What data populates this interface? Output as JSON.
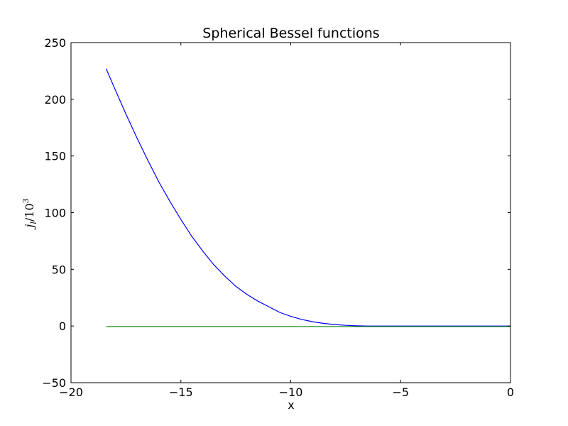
{
  "chart_data": {
    "type": "line",
    "title": "Spherical Bessel functions",
    "xlabel": "x",
    "ylabel": "j_l/10^3",
    "ylabel_parts": {
      "sym": "j",
      "sub": "l",
      "mid": "/10",
      "sup": "3"
    },
    "xlim": [
      -20,
      0
    ],
    "ylim": [
      -50,
      250
    ],
    "xticks": [
      -20,
      -15,
      -10,
      -5,
      0
    ],
    "xtick_labels": [
      "−20",
      "−15",
      "−10",
      "−5",
      "0"
    ],
    "yticks": [
      -50,
      0,
      50,
      100,
      150,
      200,
      250
    ],
    "ytick_labels": [
      "−50",
      "0",
      "50",
      "100",
      "150",
      "200",
      "250"
    ],
    "grid": false,
    "series": [
      {
        "color": "#0000ff",
        "x": [
          -18.4,
          -18.0,
          -17.5,
          -17.0,
          -16.5,
          -16.0,
          -15.5,
          -15.0,
          -14.5,
          -14.0,
          -13.5,
          -13.0,
          -12.5,
          -12.0,
          -11.5,
          -11.0,
          -10.5,
          -10.0,
          -9.5,
          -9.0,
          -8.5,
          -8.0,
          -7.5,
          -7.0,
          -6.5,
          -6.0,
          -5.0,
          -4.0,
          -3.0,
          -2.0,
          -1.0,
          0.0
        ],
        "y": [
          227,
          209,
          187,
          166,
          146,
          127,
          110,
          94,
          79,
          66,
          54,
          44,
          35,
          28,
          22,
          17,
          12,
          8.5,
          5.8,
          3.8,
          2.3,
          1.3,
          0.6,
          0.2,
          0.0,
          -0.05,
          -0.05,
          -0.05,
          -0.05,
          -0.05,
          -0.05,
          -0.05
        ]
      },
      {
        "color": "#008000",
        "x": [
          -18.4,
          -15.0,
          -10.0,
          -5.0,
          0.0
        ],
        "y": [
          -0.5,
          -0.5,
          -0.5,
          -0.5,
          -0.5
        ]
      }
    ]
  }
}
